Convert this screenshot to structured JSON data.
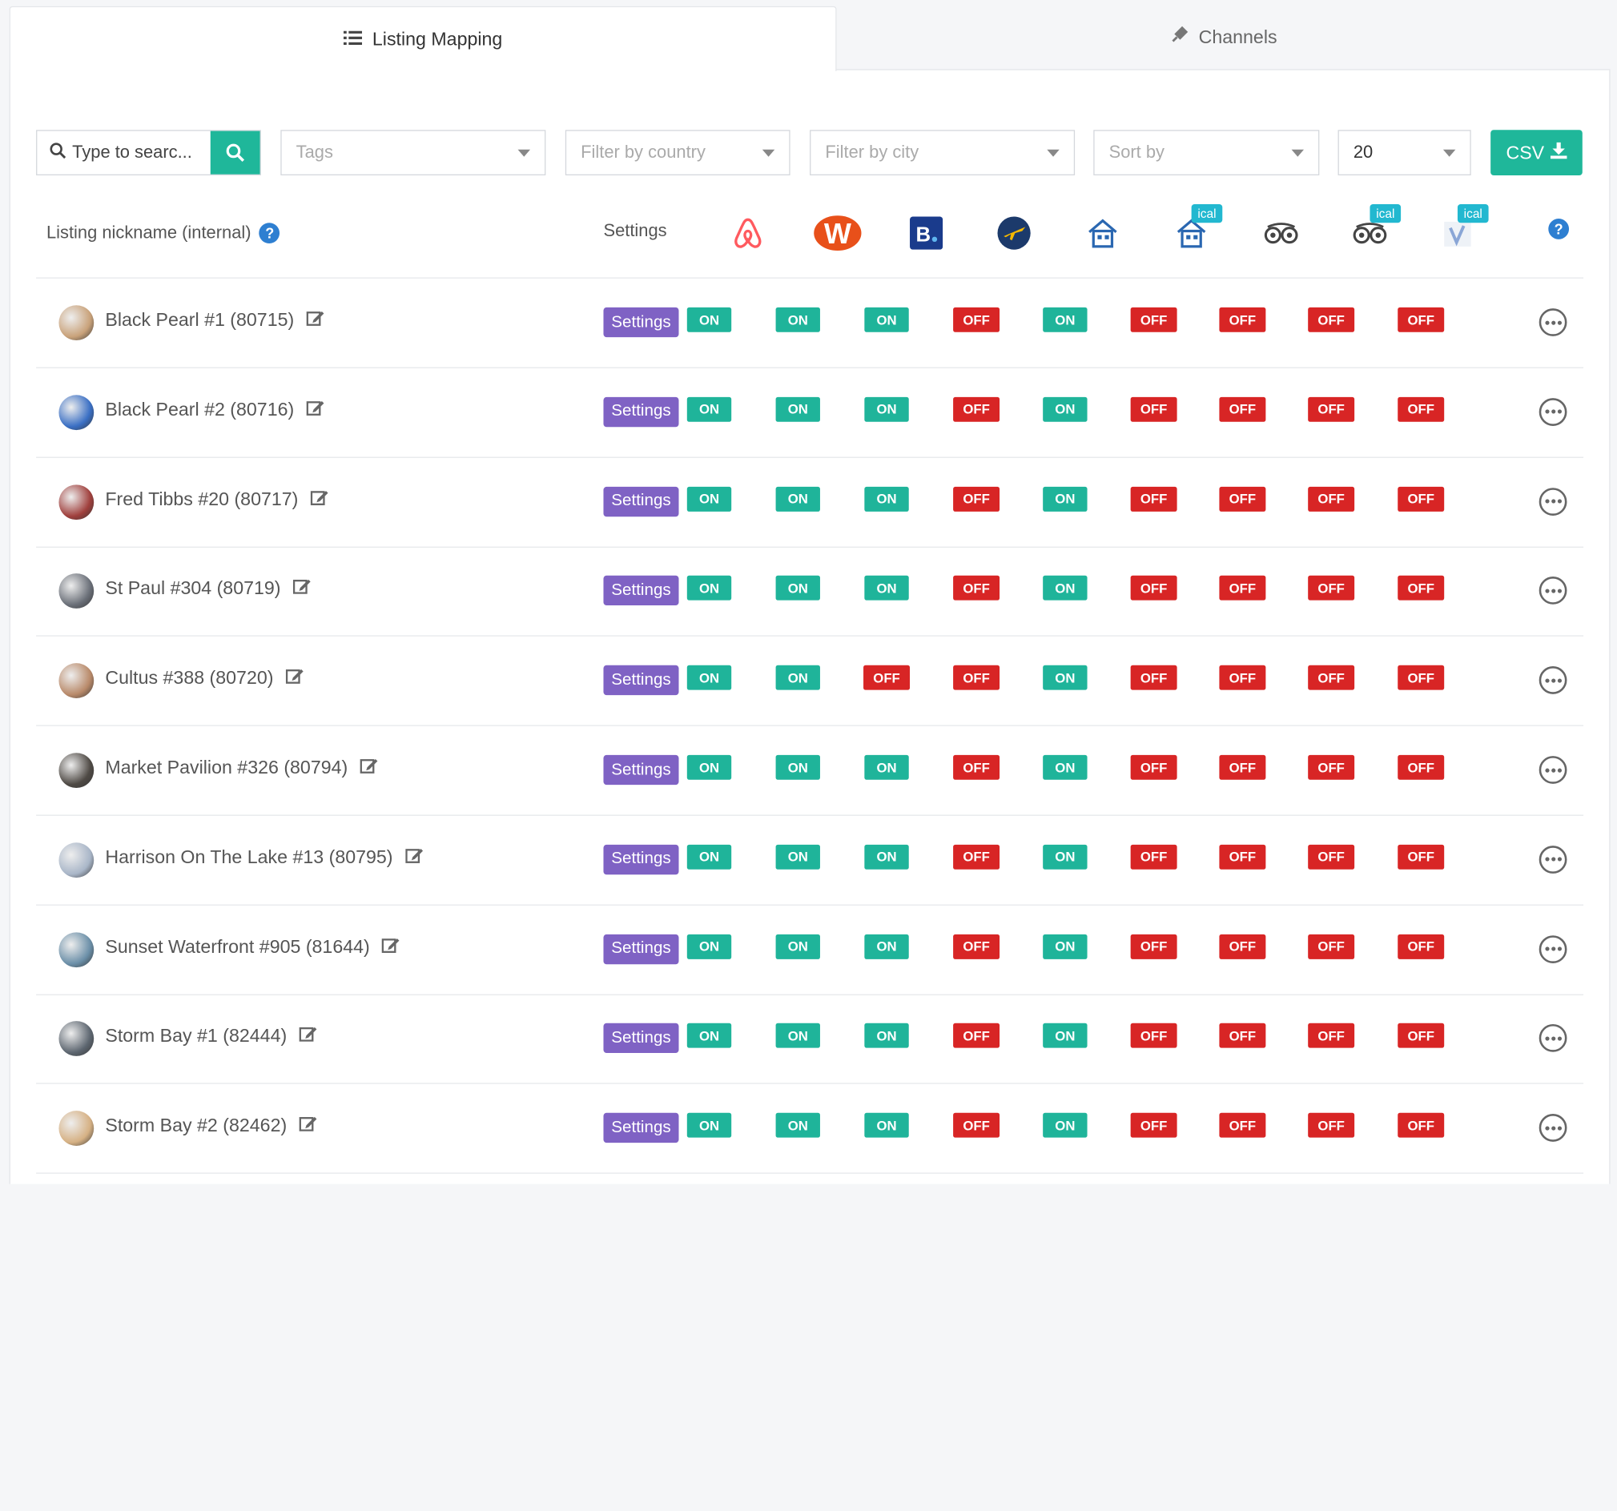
{
  "tabs": [
    {
      "label": "Listing Mapping",
      "icon": "list-icon",
      "active": true
    },
    {
      "label": "Channels",
      "icon": "plug-icon",
      "active": false
    }
  ],
  "toolbar": {
    "search_placeholder": "Type to searc...",
    "tags_placeholder": "Tags",
    "country_placeholder": "Filter by country",
    "city_placeholder": "Filter by city",
    "sort_placeholder": "Sort by",
    "page_size": "20",
    "csv_label": "CSV"
  },
  "table": {
    "name_header": "Listing nickname (internal)",
    "settings_header": "Settings",
    "channels": [
      {
        "name": "airbnb-icon"
      },
      {
        "name": "wimdu-icon"
      },
      {
        "name": "booking-icon"
      },
      {
        "name": "expedia-icon"
      },
      {
        "name": "homeaway-icon"
      },
      {
        "name": "homeaway-ical-icon",
        "badge": "ical"
      },
      {
        "name": "tripadvisor-icon"
      },
      {
        "name": "tripadvisor-ical-icon",
        "badge": "ical"
      },
      {
        "name": "vrbo-ical-icon",
        "badge": "ical"
      }
    ],
    "settings_label": "Settings",
    "on_label": "ON",
    "off_label": "OFF",
    "rows": [
      {
        "name": "Black Pearl #1 (80715)",
        "status": [
          "ON",
          "ON",
          "ON",
          "OFF",
          "ON",
          "OFF",
          "OFF",
          "OFF",
          "OFF"
        ],
        "avatar_color": "#c9a27a"
      },
      {
        "name": "Black Pearl #2 (80716)",
        "status": [
          "ON",
          "ON",
          "ON",
          "OFF",
          "ON",
          "OFF",
          "OFF",
          "OFF",
          "OFF"
        ],
        "avatar_color": "#3a6fc4"
      },
      {
        "name": "Fred Tibbs #20 (80717)",
        "status": [
          "ON",
          "ON",
          "ON",
          "OFF",
          "ON",
          "OFF",
          "OFF",
          "OFF",
          "OFF"
        ],
        "avatar_color": "#a0403d"
      },
      {
        "name": "St Paul #304 (80719)",
        "status": [
          "ON",
          "ON",
          "ON",
          "OFF",
          "ON",
          "OFF",
          "OFF",
          "OFF",
          "OFF"
        ],
        "avatar_color": "#6a6f78"
      },
      {
        "name": "Cultus #388 (80720)",
        "status": [
          "ON",
          "ON",
          "OFF",
          "OFF",
          "ON",
          "OFF",
          "OFF",
          "OFF",
          "OFF"
        ],
        "avatar_color": "#b98a6a"
      },
      {
        "name": "Market Pavilion #326 (80794)",
        "status": [
          "ON",
          "ON",
          "ON",
          "OFF",
          "ON",
          "OFF",
          "OFF",
          "OFF",
          "OFF"
        ],
        "avatar_color": "#4f4a45"
      },
      {
        "name": "Harrison On The Lake #13 (80795)",
        "status": [
          "ON",
          "ON",
          "ON",
          "OFF",
          "ON",
          "OFF",
          "OFF",
          "OFF",
          "OFF"
        ],
        "avatar_color": "#a9b6c8"
      },
      {
        "name": "Sunset Waterfront #905 (81644)",
        "status": [
          "ON",
          "ON",
          "ON",
          "OFF",
          "ON",
          "OFF",
          "OFF",
          "OFF",
          "OFF"
        ],
        "avatar_color": "#6b8fa8"
      },
      {
        "name": "Storm Bay #1 (82444)",
        "status": [
          "ON",
          "ON",
          "ON",
          "OFF",
          "ON",
          "OFF",
          "OFF",
          "OFF",
          "OFF"
        ],
        "avatar_color": "#5d6670"
      },
      {
        "name": "Storm Bay #2 (82462)",
        "status": [
          "ON",
          "ON",
          "ON",
          "OFF",
          "ON",
          "OFF",
          "OFF",
          "OFF",
          "OFF"
        ],
        "avatar_color": "#d6b184"
      }
    ]
  },
  "colors": {
    "accent": "#1fb79a",
    "settings": "#7f62c4",
    "on": "#1fb49a",
    "off": "#d82525",
    "ical": "#22b8d0"
  }
}
